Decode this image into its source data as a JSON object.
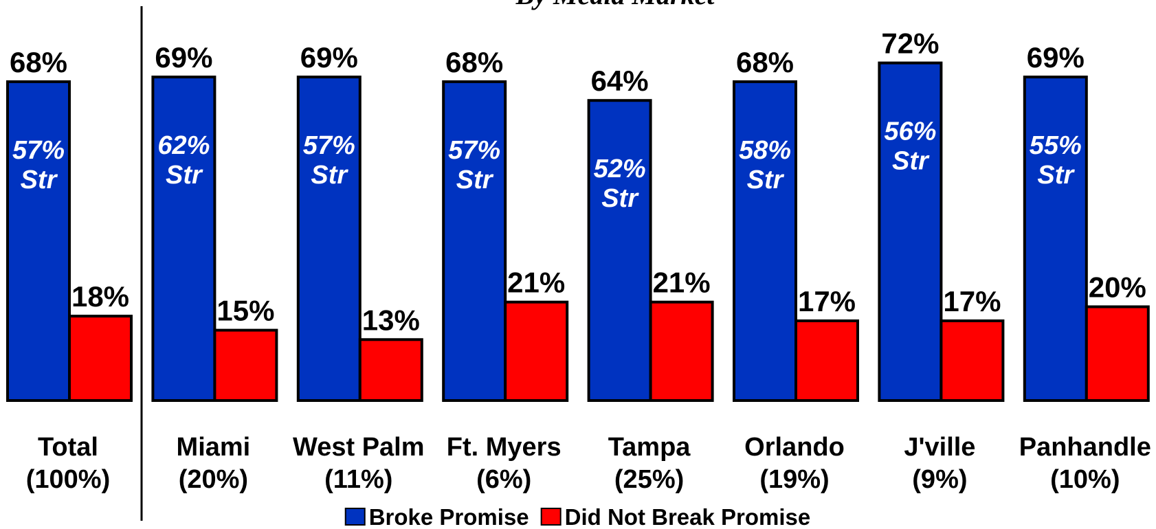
{
  "chart_data": {
    "type": "bar",
    "subtitle": "By Media Market",
    "categories": [
      "Total",
      "Miami",
      "West Palm",
      "Ft. Myers",
      "Tampa",
      "Orlando",
      "J'ville",
      "Panhandle"
    ],
    "category_shares": [
      "(100%)",
      "(20%)",
      "(11%)",
      "(6%)",
      "(25%)",
      "(19%)",
      "(9%)",
      "(10%)"
    ],
    "series": [
      {
        "name": "Broke Promise",
        "color": "#0033c0",
        "values": [
          68,
          69,
          69,
          68,
          64,
          68,
          72,
          69
        ],
        "value_labels": [
          "68%",
          "69%",
          "69%",
          "68%",
          "64%",
          "68%",
          "72%",
          "69%"
        ]
      },
      {
        "name": "Did Not Break Promise",
        "color": "#ff0000",
        "values": [
          18,
          15,
          13,
          21,
          21,
          17,
          17,
          20
        ],
        "value_labels": [
          "18%",
          "15%",
          "13%",
          "21%",
          "21%",
          "17%",
          "17%",
          "20%"
        ]
      }
    ],
    "strong": {
      "name": "Str",
      "values": [
        57,
        62,
        57,
        57,
        52,
        58,
        56,
        55
      ],
      "value_labels": [
        "57%",
        "62%",
        "57%",
        "57%",
        "52%",
        "58%",
        "56%",
        "55%"
      ]
    },
    "ylim": [
      0,
      80
    ],
    "legend": "bottom"
  }
}
